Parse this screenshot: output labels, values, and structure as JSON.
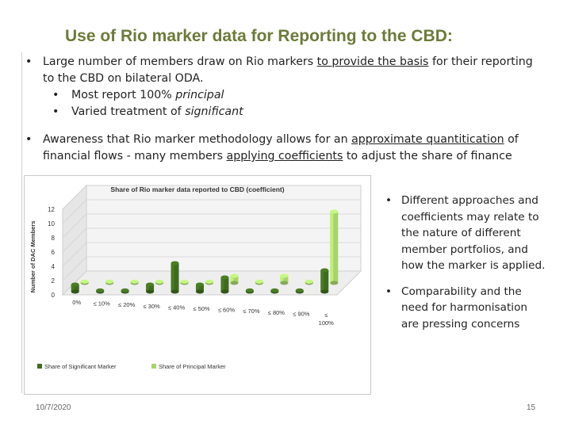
{
  "slide": {
    "title": "Use of Rio marker data for Reporting to the CBD:",
    "date": "10/7/2020",
    "page_number": "15"
  },
  "bullets": {
    "b1_pre": "Large number of members draw on Rio markers ",
    "b1_u": "to provide the basis",
    "b1_post": " for their reporting to the CBD on bilateral ODA.",
    "sub1_pre": "Most report 100% ",
    "sub1_it": "principal",
    "sub2_pre": "Varied treatment of ",
    "sub2_it": "significant",
    "b2_pre": "Awareness that Rio marker methodology allows for an ",
    "b2_u1": "approximate quantitication",
    "b2_mid1": " of financial flows - many members ",
    "b2_u2": "applying coefficients",
    "b2_post": " to adjust the share of finance",
    "dot": "•"
  },
  "side_bullets": [
    "Different approaches and coefficients may relate to the nature of different member portfolios, and how the marker is applied.",
    "Comparability and the need for harmonisation are pressing concerns"
  ],
  "colors": {
    "significant": "#3f6b1e",
    "principal": "#a6d46a",
    "title": "#6b7b3a"
  },
  "chart_data": {
    "type": "bar",
    "title": "Share of Rio marker data reported to CBD (coefficient)",
    "ylabel": "Number of DAC Members",
    "xlabel": "",
    "ylim": [
      0,
      12
    ],
    "yticks": [
      "0",
      "2",
      "4",
      "6",
      "8",
      "10",
      "12"
    ],
    "categories": [
      "0%",
      "≤ 10%",
      "≤ 20%",
      "≤ 30%",
      "≤ 40%",
      "≤ 50%",
      "≤ 60%",
      "≤ 70%",
      "≤ 80%",
      "≤ 90%",
      "≤ 100%"
    ],
    "series": [
      {
        "name": "Share of Significant Marker",
        "values": [
          1,
          0,
          0,
          1,
          4,
          1,
          2,
          0,
          0,
          0,
          3
        ]
      },
      {
        "name": "Share of Principal Marker",
        "values": [
          0,
          0,
          0,
          0,
          0,
          0,
          1,
          0,
          1,
          0,
          10
        ]
      }
    ],
    "legend_position": "bottom"
  }
}
